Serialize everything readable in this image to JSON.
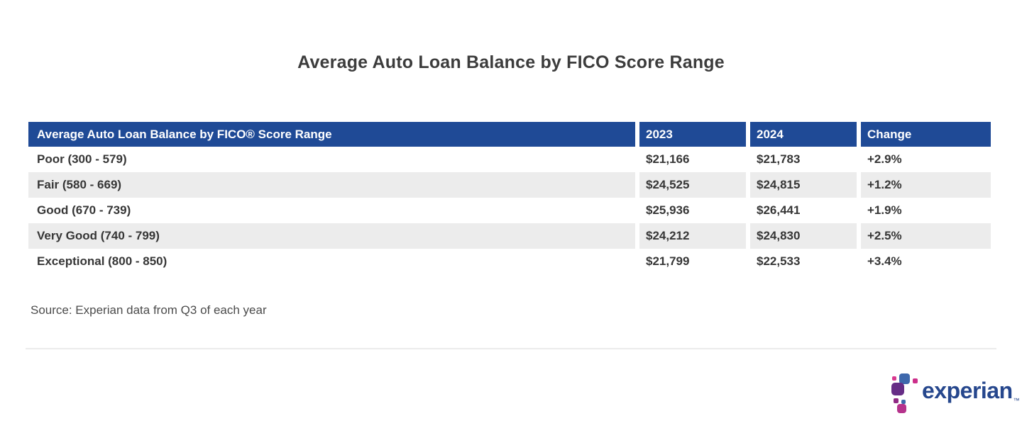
{
  "page": {
    "title": "Average Auto Loan Balance by FICO Score Range",
    "source_note": "Source: Experian data from Q3 of each year"
  },
  "table": {
    "header": {
      "label": "Average Auto Loan Balance by FICO® Score Range",
      "col_2023": "2023",
      "col_2024": "2024",
      "col_change": "Change"
    },
    "rows": [
      {
        "label": "Poor (300 - 579)",
        "y2023": "$21,166",
        "y2024": "$21,783",
        "change": "+2.9%"
      },
      {
        "label": "Fair (580 - 669)",
        "y2023": "$24,525",
        "y2024": "$24,815",
        "change": "+1.2%"
      },
      {
        "label": "Good (670 - 739)",
        "y2023": "$25,936",
        "y2024": "$26,441",
        "change": "+1.9%"
      },
      {
        "label": "Very Good (740 - 799)",
        "y2023": "$24,212",
        "y2024": "$24,830",
        "change": "+2.5%"
      },
      {
        "label": "Exceptional (800 - 850)",
        "y2023": "$21,799",
        "y2024": "$22,533",
        "change": "+3.4%"
      }
    ]
  },
  "chart_data": {
    "type": "table",
    "title": "Average Auto Loan Balance by FICO Score Range",
    "columns": [
      "Average Auto Loan Balance by FICO® Score Range",
      "2023",
      "2024",
      "Change"
    ],
    "rows": [
      [
        "Poor (300 - 579)",
        "$21,166",
        "$21,783",
        "+2.9%"
      ],
      [
        "Fair (580 - 669)",
        "$24,525",
        "$24,815",
        "+1.2%"
      ],
      [
        "Good (670 - 739)",
        "$25,936",
        "$26,441",
        "+1.9%"
      ],
      [
        "Very Good (740 - 799)",
        "$24,212",
        "$24,830",
        "+2.5%"
      ],
      [
        "Exceptional (800 - 850)",
        "$21,799",
        "$22,533",
        "+3.4%"
      ]
    ],
    "source": "Source: Experian data from Q3 of each year",
    "header_bg": "#1f4a96",
    "alt_row_bg": "#ececec"
  },
  "logo": {
    "wordmark": "experian",
    "trademark": "™"
  },
  "colors": {
    "header_bg": "#1f4a96",
    "row_alt_bg": "#ececec",
    "title_text": "#3c3c3c",
    "experian_blue": "#26478d",
    "logo_purple": "#662d86",
    "logo_blue": "#3e68ac",
    "logo_magenta": "#b5338c",
    "logo_pink": "#cc2e8a"
  }
}
